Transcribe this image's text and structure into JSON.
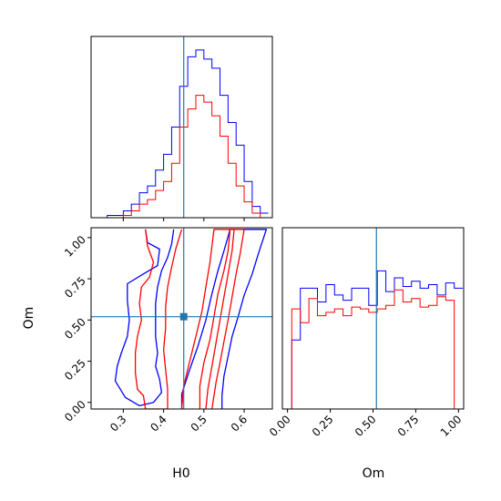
{
  "chart_data": {
    "type": "corner",
    "parameters": [
      "H0",
      "Om"
    ],
    "truths": {
      "H0": 0.45,
      "Om": 0.52
    },
    "series_colors": {
      "blue": "#0000ff",
      "red": "#ff0000",
      "truth": "#1f77b4"
    },
    "hist_H0": {
      "xlim": [
        0.22,
        0.67
      ],
      "bin_edges": [
        0.22,
        0.24,
        0.26,
        0.28,
        0.3,
        0.32,
        0.34,
        0.36,
        0.38,
        0.4,
        0.42,
        0.44,
        0.46,
        0.48,
        0.5,
        0.52,
        0.54,
        0.56,
        0.58,
        0.6,
        0.62,
        0.64,
        0.66
      ],
      "series": [
        {
          "color": "blue",
          "values": [
            0,
            0,
            1,
            1,
            3,
            6,
            11,
            14,
            21,
            28,
            40,
            58,
            71,
            74,
            70,
            66,
            54,
            42,
            32,
            16,
            5,
            2
          ]
        },
        {
          "color": "red",
          "values": [
            0,
            0,
            0,
            0,
            1,
            3,
            6,
            8,
            12,
            16,
            24,
            40,
            48,
            54,
            51,
            45,
            36,
            24,
            14,
            7,
            2,
            0
          ]
        }
      ]
    },
    "hist_Om": {
      "xlim": [
        -0.03,
        1.03
      ],
      "xticks": [
        "0.00",
        "0.25",
        "0.50",
        "0.75",
        "1.00"
      ],
      "xlabel": "Om",
      "bin_edges": [
        -0.025,
        0.025,
        0.075,
        0.125,
        0.175,
        0.225,
        0.275,
        0.325,
        0.375,
        0.425,
        0.475,
        0.525,
        0.575,
        0.625,
        0.675,
        0.725,
        0.775,
        0.825,
        0.875,
        0.925,
        0.975,
        1.025
      ],
      "series": [
        {
          "color": "blue",
          "values": [
            0,
            40,
            70,
            70,
            62,
            72,
            66,
            63,
            70,
            70,
            60,
            80,
            68,
            76,
            71,
            74,
            70,
            72,
            66,
            73,
            70
          ]
        },
        {
          "color": "red",
          "values": [
            0,
            58,
            50,
            64,
            54,
            56,
            58,
            54,
            59,
            58,
            56,
            58,
            60,
            69,
            62,
            64,
            59,
            60,
            65,
            63,
            0
          ]
        }
      ]
    },
    "contour": {
      "xlim": [
        0.22,
        0.67
      ],
      "ylim": [
        -0.04,
        1.06
      ],
      "xticks": [
        "0.3",
        "0.4",
        "0.5",
        "0.6"
      ],
      "yticks": [
        "0.00",
        "0.25",
        "0.50",
        "0.75",
        "1.00"
      ],
      "xlabel": "H0",
      "ylabel": "Om",
      "levels": [
        {
          "color": "blue",
          "points": [
            [
              0.355,
              1.05
            ],
            [
              0.36,
              0.97
            ],
            [
              0.39,
              0.93
            ],
            [
              0.385,
              0.83
            ],
            [
              0.35,
              0.78
            ],
            [
              0.31,
              0.72
            ],
            [
              0.31,
              0.62
            ],
            [
              0.315,
              0.5
            ],
            [
              0.31,
              0.4
            ],
            [
              0.295,
              0.3
            ],
            [
              0.285,
              0.22
            ],
            [
              0.28,
              0.13
            ],
            [
              0.305,
              0.03
            ],
            [
              0.34,
              -0.02
            ],
            [
              0.375,
              0.0
            ],
            [
              0.395,
              0.06
            ],
            [
              0.39,
              0.14
            ],
            [
              0.38,
              0.22
            ],
            [
              0.385,
              0.3
            ],
            [
              0.38,
              0.4
            ],
            [
              0.38,
              0.5
            ],
            [
              0.38,
              0.6
            ],
            [
              0.385,
              0.7
            ],
            [
              0.395,
              0.8
            ],
            [
              0.41,
              0.88
            ],
            [
              0.42,
              0.96
            ],
            [
              0.425,
              1.05
            ]
          ]
        },
        {
          "color": "blue",
          "points": [
            [
              0.445,
              -0.04
            ],
            [
              0.445,
              0.05
            ],
            [
              0.465,
              0.2
            ],
            [
              0.485,
              0.34
            ],
            [
              0.505,
              0.5
            ],
            [
              0.52,
              0.66
            ],
            [
              0.535,
              0.8
            ],
            [
              0.55,
              0.92
            ],
            [
              0.565,
              1.05
            ],
            [
              0.655,
              1.05
            ],
            [
              0.635,
              0.9
            ],
            [
              0.62,
              0.78
            ],
            [
              0.6,
              0.65
            ],
            [
              0.585,
              0.52
            ],
            [
              0.57,
              0.4
            ],
            [
              0.56,
              0.28
            ],
            [
              0.55,
              0.16
            ],
            [
              0.545,
              0.04
            ],
            [
              0.545,
              -0.04
            ]
          ]
        },
        {
          "color": "red",
          "points": [
            [
              0.355,
              1.05
            ],
            [
              0.36,
              0.95
            ],
            [
              0.375,
              0.85
            ],
            [
              0.365,
              0.76
            ],
            [
              0.345,
              0.7
            ],
            [
              0.34,
              0.6
            ],
            [
              0.345,
              0.5
            ],
            [
              0.335,
              0.4
            ],
            [
              0.33,
              0.3
            ],
            [
              0.33,
              0.18
            ],
            [
              0.335,
              0.08
            ],
            [
              0.35,
              0.04
            ],
            [
              0.355,
              -0.04
            ],
            [
              0.41,
              -0.04
            ],
            [
              0.41,
              0.08
            ],
            [
              0.405,
              0.2
            ],
            [
              0.4,
              0.32
            ],
            [
              0.405,
              0.45
            ],
            [
              0.405,
              0.58
            ],
            [
              0.41,
              0.7
            ],
            [
              0.42,
              0.82
            ],
            [
              0.43,
              0.93
            ],
            [
              0.445,
              1.05
            ]
          ]
        },
        {
          "color": "red",
          "points": [
            [
              0.445,
              -0.04
            ],
            [
              0.45,
              0.1
            ],
            [
              0.465,
              0.25
            ],
            [
              0.48,
              0.4
            ],
            [
              0.495,
              0.55
            ],
            [
              0.505,
              0.7
            ],
            [
              0.515,
              0.85
            ],
            [
              0.525,
              1.05
            ],
            [
              0.6,
              1.05
            ],
            [
              0.59,
              0.9
            ],
            [
              0.58,
              0.78
            ],
            [
              0.57,
              0.64
            ],
            [
              0.56,
              0.5
            ],
            [
              0.55,
              0.37
            ],
            [
              0.54,
              0.24
            ],
            [
              0.53,
              0.12
            ],
            [
              0.52,
              -0.04
            ]
          ]
        },
        {
          "color": "red",
          "points": [
            [
              0.49,
              -0.04
            ],
            [
              0.49,
              0.1
            ],
            [
              0.5,
              0.24
            ],
            [
              0.515,
              0.38
            ],
            [
              0.525,
              0.52
            ],
            [
              0.535,
              0.66
            ],
            [
              0.55,
              0.8
            ],
            [
              0.56,
              0.92
            ],
            [
              0.565,
              1.05
            ],
            [
              0.575,
              1.05
            ],
            [
              0.57,
              0.92
            ],
            [
              0.56,
              0.78
            ],
            [
              0.55,
              0.64
            ],
            [
              0.54,
              0.5
            ],
            [
              0.53,
              0.36
            ],
            [
              0.52,
              0.22
            ],
            [
              0.51,
              0.08
            ],
            [
              0.505,
              -0.04
            ]
          ]
        }
      ]
    }
  }
}
